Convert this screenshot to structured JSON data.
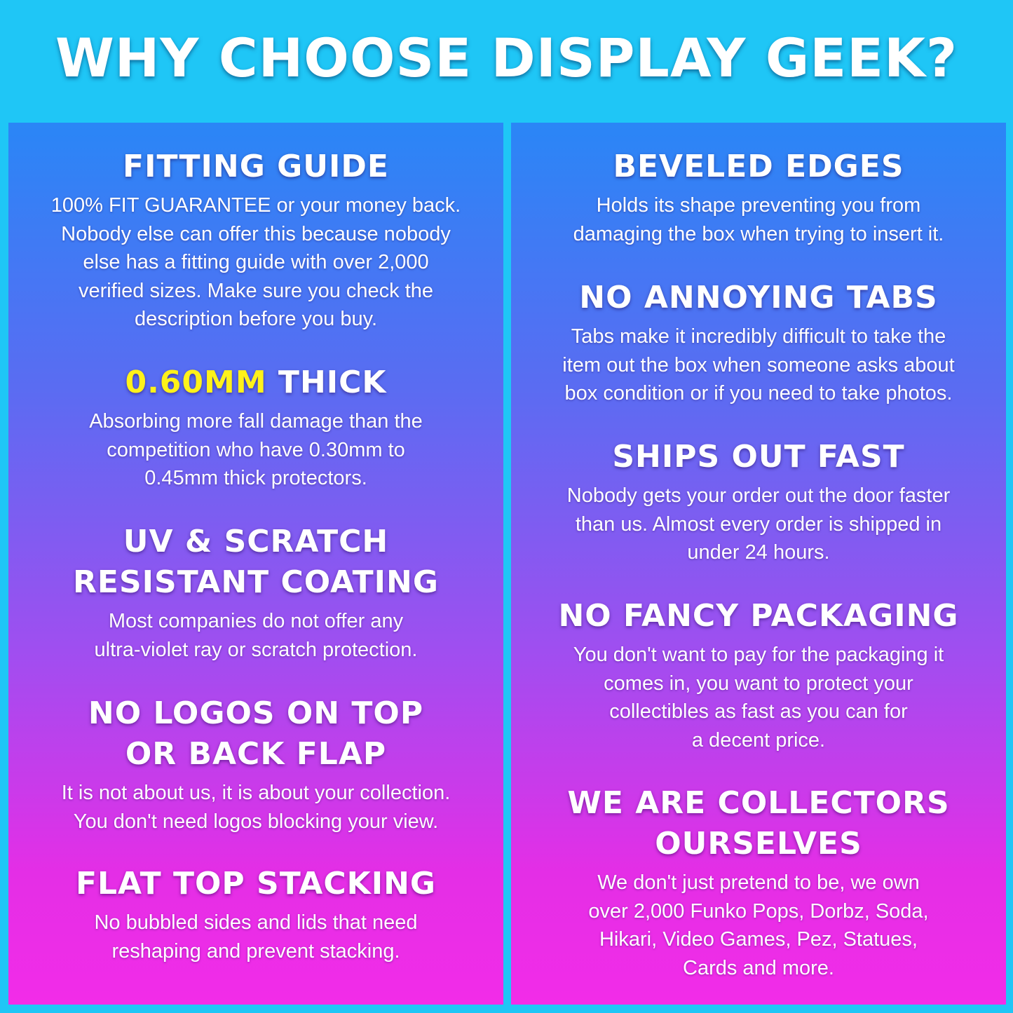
{
  "title": "WHY CHOOSE DISPLAY GEEK?",
  "colors": {
    "background": "#1fc6f6",
    "panel_top": "#2a86f6",
    "panel_bottom": "#f22ce8",
    "highlight": "#fff21a"
  },
  "left": [
    {
      "heading": [
        "FITTING GUIDE"
      ],
      "body": [
        "100% FIT GUARANTEE or your money back.",
        "Nobody else can offer this because nobody",
        "else has a fitting guide with over 2,000",
        "verified sizes. Make sure you check the",
        "description before you buy."
      ]
    },
    {
      "heading_highlight": "0.60MM",
      "heading": [
        " THICK"
      ],
      "body": [
        "Absorbing more fall damage than the",
        "competition who have 0.30mm to",
        "0.45mm thick protectors."
      ]
    },
    {
      "heading": [
        "UV & SCRATCH",
        "RESISTANT COATING"
      ],
      "body": [
        "Most companies do not offer any",
        "ultra-violet ray or scratch protection."
      ]
    },
    {
      "heading": [
        "NO LOGOS ON TOP",
        "OR BACK FLAP"
      ],
      "body": [
        "It is not about us, it is about your collection.",
        "You don't need logos blocking your view."
      ]
    },
    {
      "heading": [
        "FLAT TOP STACKING"
      ],
      "body": [
        "No bubbled sides and lids that need",
        "reshaping and prevent stacking."
      ]
    }
  ],
  "right": [
    {
      "heading": [
        "BEVELED EDGES"
      ],
      "body": [
        "Holds its shape preventing you from",
        "damaging the box when trying to insert it."
      ]
    },
    {
      "heading": [
        "NO ANNOYING TABS"
      ],
      "body": [
        "Tabs make it incredibly difficult to take the",
        "item out the box when someone asks about",
        "box condition or if you need to take photos."
      ]
    },
    {
      "heading": [
        "SHIPS OUT FAST"
      ],
      "body": [
        "Nobody gets your order out the door faster",
        "than us. Almost every order is shipped in",
        "under 24 hours."
      ]
    },
    {
      "heading": [
        "NO FANCY PACKAGING"
      ],
      "body": [
        "You don't want to pay for the packaging it",
        "comes in, you want to protect your",
        "collectibles as fast as you can for",
        "a decent price."
      ]
    },
    {
      "heading": [
        "WE ARE COLLECTORS",
        "OURSELVES"
      ],
      "body": [
        "We don't just pretend to be, we own",
        "over 2,000 Funko Pops, Dorbz, Soda,",
        "Hikari, Video Games, Pez, Statues,",
        "Cards and more."
      ]
    }
  ]
}
